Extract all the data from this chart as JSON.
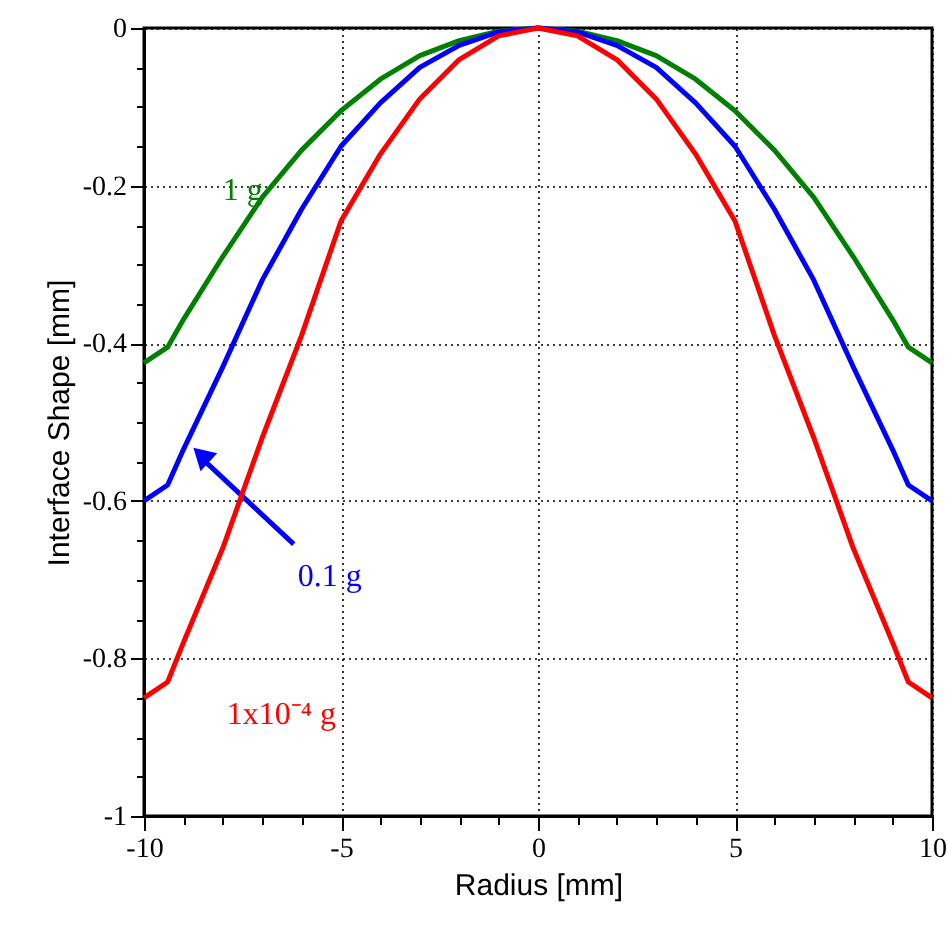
{
  "chart_data": {
    "type": "line",
    "xlabel": "Radius   [mm]",
    "ylabel": "Interface Shape   [mm]",
    "x": [
      -10,
      -9.4,
      -9,
      -8,
      -7,
      -6,
      -5,
      -4,
      -3,
      -2,
      -1,
      0,
      1,
      2,
      3,
      4,
      5,
      6,
      7,
      8,
      9,
      9.4,
      10
    ],
    "series": [
      {
        "name": "1 g",
        "color": "#008000",
        "values": [
          -0.425,
          -0.405,
          -0.37,
          -0.29,
          -0.215,
          -0.155,
          -0.105,
          -0.065,
          -0.035,
          -0.016,
          -0.004,
          0,
          -0.004,
          -0.016,
          -0.035,
          -0.065,
          -0.105,
          -0.155,
          -0.215,
          -0.29,
          -0.37,
          -0.405,
          -0.425
        ]
      },
      {
        "name": "0.1 g",
        "color": "#0000ff",
        "values": [
          -0.6,
          -0.58,
          -0.535,
          -0.43,
          -0.32,
          -0.23,
          -0.15,
          -0.095,
          -0.05,
          -0.022,
          -0.005,
          0,
          -0.005,
          -0.022,
          -0.05,
          -0.095,
          -0.15,
          -0.23,
          -0.32,
          -0.43,
          -0.535,
          -0.58,
          -0.6
        ]
      },
      {
        "name": "1x10⁻⁴ g",
        "color": "#ff0000",
        "values": [
          -0.85,
          -0.83,
          -0.78,
          -0.66,
          -0.52,
          -0.39,
          -0.245,
          -0.16,
          -0.09,
          -0.04,
          -0.01,
          0,
          -0.01,
          -0.04,
          -0.09,
          -0.16,
          -0.245,
          -0.39,
          -0.52,
          -0.66,
          -0.78,
          -0.83,
          -0.85
        ]
      }
    ],
    "xlim": [
      -10,
      10
    ],
    "xticks": [
      -10,
      {
        "value": -9,
        "label": null
      },
      {
        "value": -8,
        "label": null
      },
      {
        "value": -7,
        "label": null
      },
      {
        "value": -6,
        "label": null
      },
      -5,
      {
        "value": -4,
        "label": null
      },
      {
        "value": -3,
        "label": null
      },
      {
        "value": -2,
        "label": null
      },
      {
        "value": -1,
        "label": null
      },
      0,
      {
        "value": 1,
        "label": null
      },
      {
        "value": 2,
        "label": null
      },
      {
        "value": 3,
        "label": null
      },
      {
        "value": 4,
        "label": null
      },
      5,
      {
        "value": 6,
        "label": null
      },
      {
        "value": 7,
        "label": null
      },
      {
        "value": 8,
        "label": null
      },
      {
        "value": 9,
        "label": null
      },
      10
    ],
    "ylim": [
      -1,
      0
    ],
    "yticks": [
      -1,
      {
        "value": -0.95,
        "label": null
      },
      {
        "value": -0.9,
        "label": null
      },
      {
        "value": -0.85,
        "label": null
      },
      -0.8,
      {
        "value": -0.75,
        "label": null
      },
      {
        "value": -0.7,
        "label": null
      },
      {
        "value": -0.65,
        "label": null
      },
      -0.6,
      {
        "value": -0.55,
        "label": null
      },
      {
        "value": -0.5,
        "label": null
      },
      {
        "value": -0.45,
        "label": null
      },
      -0.4,
      {
        "value": -0.35,
        "label": null
      },
      {
        "value": -0.3,
        "label": null
      },
      {
        "value": -0.25,
        "label": null
      },
      -0.2,
      {
        "value": -0.15,
        "label": null
      },
      {
        "value": -0.1,
        "label": null
      },
      {
        "value": -0.05,
        "label": null
      },
      0
    ],
    "grid": true,
    "marker": "none",
    "line_style": "solid"
  }
}
